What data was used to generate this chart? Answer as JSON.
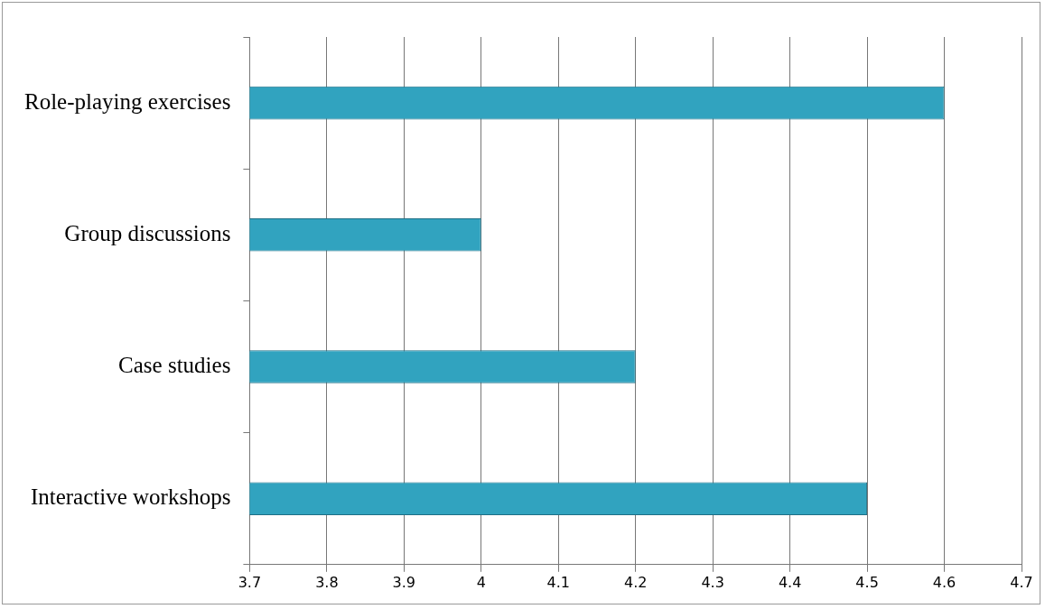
{
  "chart_data": {
    "type": "bar",
    "orientation": "horizontal",
    "categories": [
      "Role-playing exercises",
      "Group discussions",
      "Case studies",
      "Interactive workshops"
    ],
    "values": [
      4.6,
      4.0,
      4.2,
      4.5
    ],
    "color": "#31a3bf",
    "xlim": [
      3.7,
      4.7
    ],
    "xticks": [
      3.7,
      3.8,
      3.9,
      4,
      4.1,
      4.2,
      4.3,
      4.4,
      4.5,
      4.6,
      4.7
    ],
    "grid": "x",
    "legend": false
  }
}
